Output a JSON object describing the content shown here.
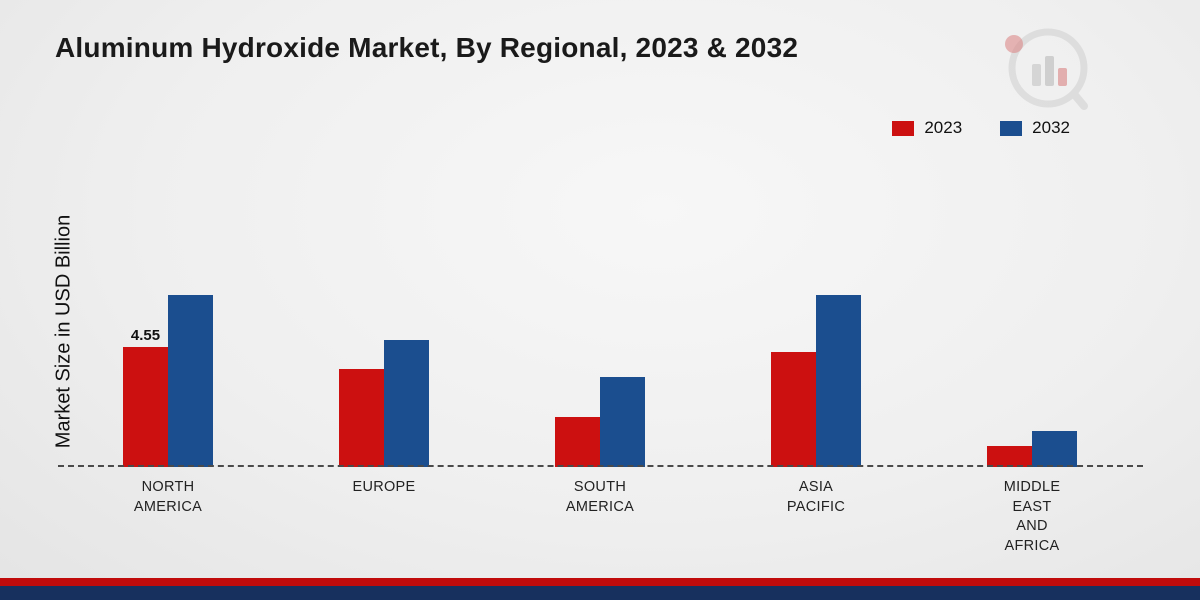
{
  "title": "Aluminum Hydroxide Market, By Regional, 2023 & 2032",
  "y_axis_label": "Market Size in USD Billion",
  "legend": [
    {
      "label": "2023",
      "color": "#cc1010"
    },
    {
      "label": "2032",
      "color": "#1b4e8f"
    }
  ],
  "chart_data": {
    "type": "bar",
    "categories": [
      "NORTH\nAMERICA",
      "EUROPE",
      "SOUTH\nAMERICA",
      "ASIA\nPACIFIC",
      "MIDDLE\nEAST\nAND\nAFRICA"
    ],
    "series": [
      {
        "name": "2023",
        "color": "#cc1010",
        "values": [
          4.55,
          3.7,
          1.9,
          4.35,
          0.8
        ]
      },
      {
        "name": "2032",
        "color": "#1b4e8f",
        "values": [
          6.5,
          4.8,
          3.4,
          6.5,
          1.35
        ]
      }
    ],
    "data_labels": [
      "4.55",
      "",
      "",
      "",
      ""
    ],
    "title": "Aluminum Hydroxide Market, By Regional, 2023 & 2032",
    "xlabel": "",
    "ylabel": "Market Size in USD Billion",
    "ylim": [
      0,
      7
    ],
    "legend_position": "top-right",
    "grid": "off",
    "baseline_style": "dashed"
  },
  "branding": {
    "logo_name": "market-research-future-logo",
    "footer_red": "#c00b0b",
    "footer_navy": "#17305e"
  }
}
